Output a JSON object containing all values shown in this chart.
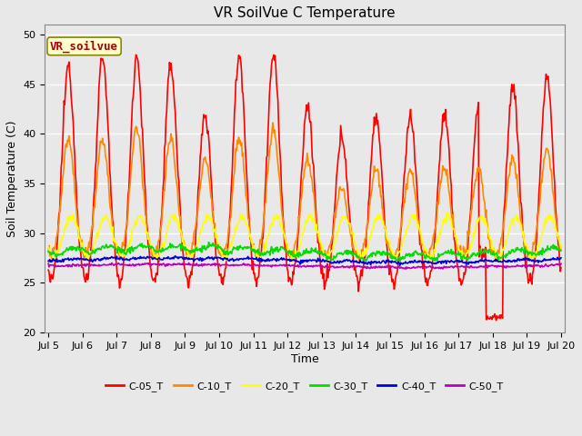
{
  "title": "VR SoilVue C Temperature",
  "xlabel": "Time",
  "ylabel": "Soil Temperature (C)",
  "ylim": [
    20,
    51
  ],
  "yticks": [
    20,
    25,
    30,
    35,
    40,
    45,
    50
  ],
  "series": {
    "C-05_T": {
      "color": "#ff0000",
      "lw": 1.2
    },
    "C-10_T": {
      "color": "#ff8800",
      "lw": 1.2
    },
    "C-20_T": {
      "color": "#ffff00",
      "lw": 1.2
    },
    "C-30_T": {
      "color": "#00dd00",
      "lw": 1.2
    },
    "C-40_T": {
      "color": "#0000dd",
      "lw": 1.2
    },
    "C-50_T": {
      "color": "#bb00bb",
      "lw": 1.2
    }
  },
  "annotation_text": "VR_soilvue",
  "annotation_color": "#aa0000",
  "annotation_bg": "#ffffcc",
  "annotation_border": "#888800",
  "plot_bg": "#e8e8e8",
  "fig_bg": "#e8e8e8",
  "grid_color": "#ffffff",
  "title_fontsize": 11,
  "axis_label_fontsize": 9,
  "tick_fontsize": 8,
  "legend_fontsize": 8,
  "annot_fontsize": 9
}
